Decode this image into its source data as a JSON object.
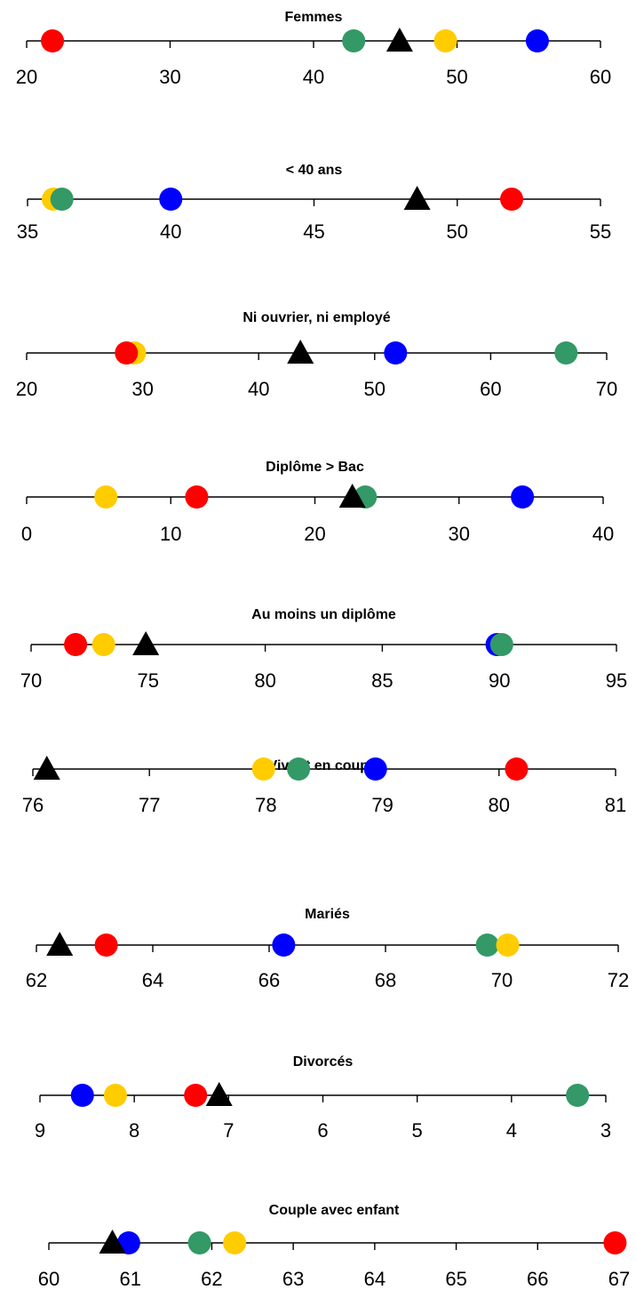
{
  "colors": {
    "red": "#ff0000",
    "yellow": "#ffcc00",
    "green": "#339966",
    "blue": "#0000ff",
    "triangle": "#000000",
    "axis": "#000000"
  },
  "chart_data": [
    {
      "type": "dot-strip",
      "title": "Femmes",
      "ticks": [
        "20",
        "30",
        "40",
        "50",
        "60"
      ],
      "xlim": [
        20,
        60
      ],
      "points": [
        {
          "color": "red",
          "x": 21.8
        },
        {
          "color": "green",
          "x": 42.8
        },
        {
          "color": "yellow",
          "x": 49.2
        },
        {
          "color": "blue",
          "x": 55.6
        }
      ],
      "triangle": 46.0
    },
    {
      "type": "dot-strip",
      "title": "< 40 ans",
      "ticks": [
        "35",
        "40",
        "45",
        "50",
        "55"
      ],
      "xlim": [
        35,
        55
      ],
      "points": [
        {
          "color": "yellow",
          "x": 35.9
        },
        {
          "color": "green",
          "x": 36.2
        },
        {
          "color": "blue",
          "x": 40.0
        },
        {
          "color": "red",
          "x": 51.9
        }
      ],
      "triangle": 48.6
    },
    {
      "type": "dot-strip",
      "title": "Ni ouvrier, ni employé",
      "ticks": [
        "20",
        "30",
        "40",
        "50",
        "60",
        "70"
      ],
      "xlim": [
        20,
        70
      ],
      "points": [
        {
          "color": "yellow",
          "x": 29.3
        },
        {
          "color": "red",
          "x": 28.6
        },
        {
          "color": "blue",
          "x": 51.8
        },
        {
          "color": "green",
          "x": 66.5
        }
      ],
      "triangle": 43.6
    },
    {
      "type": "dot-strip",
      "title": "Diplôme > Bac",
      "ticks": [
        "0",
        "10",
        "20",
        "30",
        "40"
      ],
      "xlim": [
        0,
        40
      ],
      "points": [
        {
          "color": "yellow",
          "x": 5.5
        },
        {
          "color": "red",
          "x": 11.8
        },
        {
          "color": "green",
          "x": 23.5
        },
        {
          "color": "blue",
          "x": 34.4
        }
      ],
      "triangle": 22.6
    },
    {
      "type": "dot-strip",
      "title": "Au moins un diplôme",
      "ticks": [
        "70",
        "75",
        "80",
        "85",
        "90",
        "95"
      ],
      "xlim": [
        70,
        95
      ],
      "points": [
        {
          "color": "red",
          "x": 71.9
        },
        {
          "color": "yellow",
          "x": 73.1
        },
        {
          "color": "blue",
          "x": 89.9
        },
        {
          "color": "green",
          "x": 90.1
        }
      ],
      "triangle": 74.9
    },
    {
      "type": "dot-strip",
      "title": "Vivant en couple",
      "ticks": [
        "76",
        "77",
        "78",
        "79",
        "80",
        "81"
      ],
      "xlim": [
        76,
        81
      ],
      "points": [
        {
          "color": "yellow",
          "x": 77.98
        },
        {
          "color": "green",
          "x": 78.28
        },
        {
          "color": "blue",
          "x": 78.94
        },
        {
          "color": "red",
          "x": 80.15
        }
      ],
      "triangle": 76.12
    },
    {
      "type": "dot-strip",
      "title": "Mariés",
      "ticks": [
        "62",
        "64",
        "66",
        "68",
        "70",
        "72"
      ],
      "xlim": [
        62,
        72
      ],
      "points": [
        {
          "color": "red",
          "x": 63.2
        },
        {
          "color": "blue",
          "x": 66.25
        },
        {
          "color": "green",
          "x": 69.75
        },
        {
          "color": "yellow",
          "x": 70.1
        }
      ],
      "triangle": 62.4
    },
    {
      "type": "dot-strip",
      "title": "Divorcés",
      "ticks": [
        "9",
        "8",
        "7",
        "6",
        "5",
        "4",
        "3"
      ],
      "xlim": [
        9,
        3
      ],
      "points": [
        {
          "color": "blue",
          "x": 8.55
        },
        {
          "color": "yellow",
          "x": 8.2
        },
        {
          "color": "red",
          "x": 7.35
        },
        {
          "color": "green",
          "x": 3.3
        }
      ],
      "triangle": 7.1
    },
    {
      "type": "dot-strip",
      "title": "Couple avec enfant",
      "ticks": [
        "60",
        "61",
        "62",
        "63",
        "64",
        "65",
        "66",
        "67"
      ],
      "xlim": [
        60,
        67
      ],
      "points": [
        {
          "color": "blue",
          "x": 60.98
        },
        {
          "color": "green",
          "x": 61.85
        },
        {
          "color": "yellow",
          "x": 62.28
        },
        {
          "color": "red",
          "x": 66.95
        }
      ],
      "triangle": 60.78
    }
  ]
}
